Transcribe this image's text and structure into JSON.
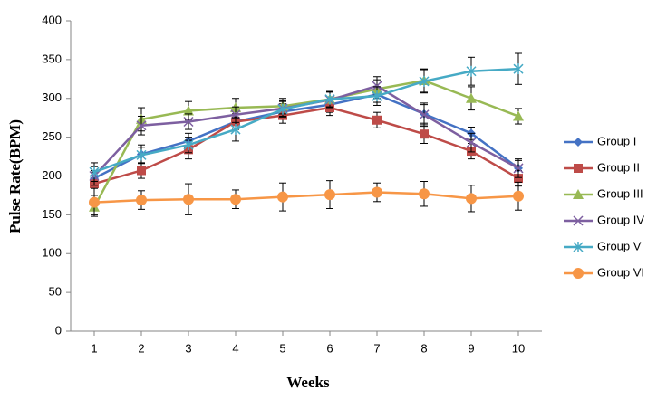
{
  "chart_data": {
    "type": "line",
    "x_label": "Weeks",
    "y_label": "Pulse Rate(BPM)",
    "x": [
      1,
      2,
      3,
      4,
      5,
      6,
      7,
      8,
      9,
      10
    ],
    "xlim": [
      0.5,
      10.5
    ],
    "xticks": [
      1,
      2,
      3,
      4,
      5,
      6,
      7,
      8,
      9,
      10
    ],
    "ylim": [
      0,
      400
    ],
    "yticks": [
      0,
      50,
      100,
      150,
      200,
      250,
      300,
      350,
      400
    ],
    "legend": "right",
    "series": [
      {
        "name": "Group I",
        "color": "#4472c4",
        "marker": "diamond",
        "values": [
          197,
          228,
          245,
          270,
          283,
          292,
          305,
          280,
          255,
          210
        ],
        "errors": [
          10,
          12,
          10,
          10,
          10,
          10,
          10,
          12,
          8,
          10
        ]
      },
      {
        "name": "Group II",
        "color": "#be4b48",
        "marker": "square",
        "values": [
          190,
          207,
          234,
          270,
          278,
          288,
          272,
          254,
          232,
          197
        ],
        "errors": [
          15,
          10,
          12,
          10,
          10,
          10,
          10,
          12,
          10,
          10
        ]
      },
      {
        "name": "Group III",
        "color": "#98b954",
        "marker": "triangle",
        "values": [
          160,
          273,
          284,
          288,
          290,
          299,
          312,
          323,
          300,
          277
        ],
        "errors": [
          10,
          15,
          12,
          12,
          10,
          10,
          12,
          15,
          15,
          10
        ]
      },
      {
        "name": "Group IV",
        "color": "#7d5fa0",
        "marker": "cross",
        "values": [
          200,
          265,
          270,
          279,
          287,
          298,
          316,
          279,
          243,
          210
        ],
        "errors": [
          12,
          12,
          10,
          10,
          10,
          10,
          12,
          15,
          12,
          12
        ]
      },
      {
        "name": "Group V",
        "color": "#46aac5",
        "marker": "star",
        "values": [
          205,
          227,
          240,
          260,
          286,
          299,
          303,
          322,
          335,
          338
        ],
        "errors": [
          12,
          10,
          10,
          15,
          10,
          10,
          12,
          15,
          18,
          20
        ]
      },
      {
        "name": "Group VI",
        "color": "#f79646",
        "marker": "circle",
        "values": [
          166,
          169,
          170,
          170,
          173,
          176,
          179,
          177,
          171,
          174
        ],
        "errors": [
          18,
          12,
          20,
          12,
          18,
          18,
          12,
          16,
          17,
          18
        ]
      }
    ]
  }
}
